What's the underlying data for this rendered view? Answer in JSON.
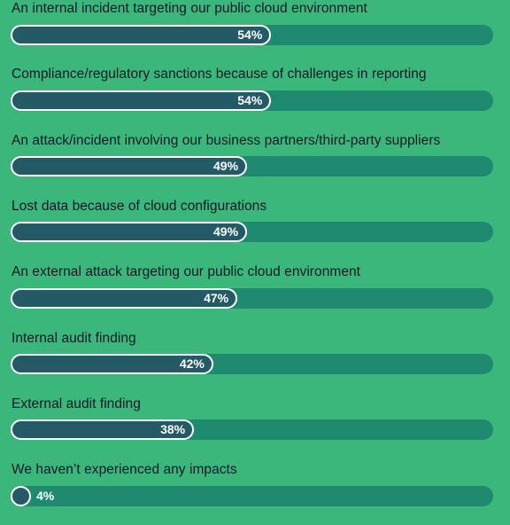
{
  "chart_data": {
    "type": "bar",
    "orientation": "horizontal",
    "categories": [
      "An internal incident targeting our public cloud environment",
      "Compliance/regulatory sanctions because of challenges in reporting",
      "An attack/incident involving our business partners/third-party suppliers",
      "Lost data because of cloud configurations",
      "An external attack targeting our public cloud environment",
      "Internal audit finding",
      "External audit finding",
      "We haven’t experienced any impacts"
    ],
    "values": [
      54,
      54,
      49,
      49,
      47,
      42,
      38,
      4
    ],
    "value_labels": [
      "54%",
      "54%",
      "49%",
      "49%",
      "47%",
      "42%",
      "38%",
      "4%"
    ],
    "xlim": [
      0,
      100
    ],
    "title": "",
    "xlabel": "",
    "ylabel": "",
    "grid": false,
    "legend": "none"
  },
  "colors": {
    "background": "#3bb77c",
    "track": "#1f8a6f",
    "fill": "#235a66",
    "fill_border": "#ffffff",
    "label_text": "#111827",
    "value_text": "#ffffff"
  }
}
